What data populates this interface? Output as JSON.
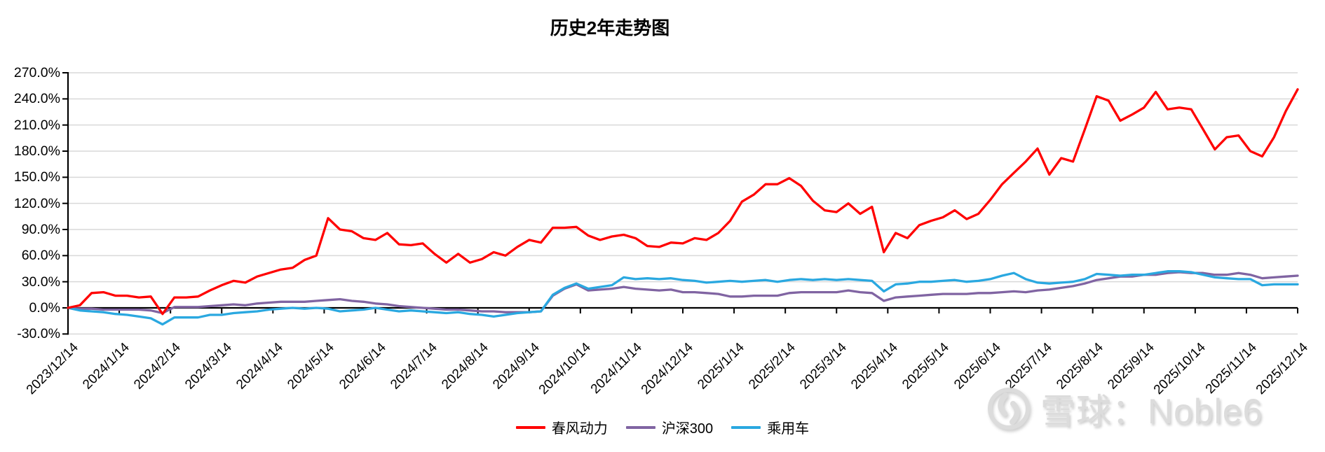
{
  "title": "历史2年走势图",
  "watermark": {
    "text": "雪球：Noble6",
    "logo": "xueqiu-snowball-logo"
  },
  "colors": {
    "background": "#ffffff",
    "gridline": "#d9d9d9",
    "axis": "#000000",
    "watermark": "#d9d9d9"
  },
  "y_axis": {
    "tick_labels": [
      "270.0%",
      "240.0%",
      "210.0%",
      "180.0%",
      "150.0%",
      "120.0%",
      "90.0%",
      "60.0%",
      "30.0%",
      "0.0%",
      "-30.0%"
    ]
  },
  "x_axis": {
    "tick_labels": [
      "2023/12/14",
      "2024/1/14",
      "2024/2/14",
      "2024/3/14",
      "2024/4/14",
      "2024/5/14",
      "2024/6/14",
      "2024/7/14",
      "2024/8/14",
      "2024/9/14",
      "2024/10/14",
      "2024/11/14",
      "2024/12/14",
      "2025/1/14",
      "2025/2/14",
      "2025/3/14",
      "2025/4/14",
      "2025/5/14",
      "2025/6/14",
      "2025/7/14",
      "2025/8/14",
      "2025/9/14",
      "2025/10/14",
      "2025/11/14",
      "2025/12/14"
    ]
  },
  "chart_data": {
    "type": "line",
    "title": "历史2年走势图",
    "x_start": "2023/12/14",
    "x_end": "2025/12/14",
    "sampling": "weekly (values in %, read from chart)",
    "ylim": [
      -30,
      270
    ],
    "y_step": 30,
    "y_format": "percent",
    "grid": true,
    "legend_position": "bottom",
    "x_tick_labels": [
      "2023/12/14",
      "2024/1/14",
      "2024/2/14",
      "2024/3/14",
      "2024/4/14",
      "2024/5/14",
      "2024/6/14",
      "2024/7/14",
      "2024/8/14",
      "2024/9/14",
      "2024/10/14",
      "2024/11/14",
      "2024/12/14",
      "2025/1/14",
      "2025/2/14",
      "2025/3/14",
      "2025/4/14",
      "2025/5/14",
      "2025/6/14",
      "2025/7/14",
      "2025/8/14",
      "2025/9/14",
      "2025/10/14",
      "2025/11/14",
      "2025/12/14"
    ],
    "series": [
      {
        "name": "春风动力",
        "color": "#ff0000",
        "values": [
          0,
          3,
          17,
          18,
          14,
          14,
          12,
          13,
          -7,
          12,
          12,
          13,
          20,
          26,
          31,
          29,
          36,
          40,
          44,
          46,
          55,
          60,
          103,
          90,
          88,
          80,
          78,
          86,
          73,
          72,
          74,
          62,
          52,
          62,
          52,
          56,
          64,
          60,
          70,
          78,
          75,
          92,
          92,
          93,
          83,
          78,
          82,
          84,
          80,
          71,
          70,
          75,
          74,
          80,
          78,
          86,
          100,
          122,
          130,
          142,
          142,
          149,
          140,
          123,
          112,
          110,
          120,
          108,
          116,
          64,
          86,
          80,
          95,
          100,
          104,
          112,
          102,
          108,
          124,
          142,
          155,
          168,
          183,
          153,
          172,
          168,
          205,
          243,
          238,
          215,
          222,
          230,
          248,
          228,
          230,
          228,
          205,
          182,
          196,
          198,
          180,
          174,
          196,
          226,
          251
        ]
      },
      {
        "name": "沪深300",
        "color": "#8064a2",
        "values": [
          0,
          -1,
          -1,
          -2,
          -2,
          -2,
          -2,
          -3,
          -6,
          1,
          1,
          1,
          2,
          3,
          4,
          3,
          5,
          6,
          7,
          7,
          7,
          8,
          9,
          10,
          8,
          7,
          5,
          4,
          2,
          1,
          0,
          -1,
          -2,
          -2,
          -3,
          -4,
          -4,
          -5,
          -5,
          -5,
          -4,
          14,
          22,
          27,
          20,
          21,
          22,
          24,
          22,
          21,
          20,
          21,
          18,
          18,
          17,
          16,
          13,
          13,
          14,
          14,
          14,
          17,
          18,
          18,
          18,
          18,
          20,
          18,
          17,
          8,
          12,
          13,
          14,
          15,
          16,
          16,
          16,
          17,
          17,
          18,
          19,
          18,
          20,
          21,
          23,
          25,
          28,
          32,
          34,
          36,
          36,
          38,
          38,
          40,
          41,
          40,
          40,
          38,
          38,
          40,
          38,
          34,
          35,
          36,
          37
        ]
      },
      {
        "name": "乘用车",
        "color": "#2aa8e0",
        "values": [
          0,
          -3,
          -4,
          -5,
          -7,
          -8,
          -10,
          -12,
          -19,
          -11,
          -11,
          -11,
          -8,
          -8,
          -6,
          -5,
          -4,
          -2,
          -1,
          0,
          -1,
          0,
          -1,
          -4,
          -3,
          -2,
          0,
          -2,
          -4,
          -3,
          -4,
          -5,
          -6,
          -5,
          -7,
          -8,
          -10,
          -8,
          -6,
          -5,
          -4,
          15,
          23,
          28,
          22,
          24,
          26,
          35,
          33,
          34,
          33,
          34,
          32,
          31,
          29,
          30,
          31,
          30,
          31,
          32,
          30,
          32,
          33,
          32,
          33,
          32,
          33,
          32,
          31,
          19,
          27,
          28,
          30,
          30,
          31,
          32,
          30,
          31,
          33,
          37,
          40,
          33,
          29,
          28,
          29,
          30,
          33,
          39,
          38,
          37,
          38,
          38,
          40,
          42,
          42,
          41,
          38,
          35,
          34,
          33,
          33,
          26,
          27,
          27,
          27
        ]
      }
    ]
  },
  "legend": {
    "items": [
      {
        "label": "春风动力",
        "color": "#ff0000"
      },
      {
        "label": "沪深300",
        "color": "#8064a2"
      },
      {
        "label": "乘用车",
        "color": "#2aa8e0"
      }
    ]
  }
}
